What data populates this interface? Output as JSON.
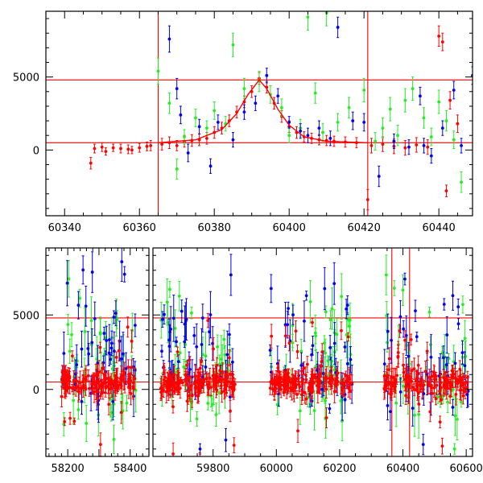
{
  "chart_data": [
    {
      "type": "scatter",
      "title": "",
      "xlabel": "",
      "ylabel": "",
      "xlim": [
        60335,
        60449
      ],
      "ylim": [
        -4500,
        9500
      ],
      "x_ticks": [
        60340,
        60360,
        60380,
        60400,
        60420,
        60440
      ],
      "y_ticks": [
        0,
        5000
      ],
      "x_tick_labels": [
        "60340",
        "60360",
        "60380",
        "60400",
        "60420",
        "60440"
      ],
      "y_tick_labels": [
        "0",
        "5000"
      ],
      "legend": "none",
      "grid": false,
      "colors": {
        "red": "#ff0000",
        "green": "#22ee22",
        "blue": "#0000ee"
      },
      "hlines": [
        4800,
        500
      ],
      "vlines": [
        60365,
        60421
      ],
      "model_curve": {
        "color": "#ff0000",
        "x": [
          60365,
          60375,
          60382,
          60386,
          60389,
          60392,
          60394,
          60397,
          60400,
          60404,
          60410,
          60421
        ],
        "y": [
          500,
          700,
          1400,
          2500,
          3800,
          4800,
          4200,
          2800,
          1700,
          900,
          600,
          500
        ]
      },
      "series": [
        {
          "color": "#ff0000",
          "x": [
            60347,
            60348,
            60350,
            60351,
            60353,
            60355,
            60357,
            60358,
            60360,
            60362,
            60363,
            60366,
            60368,
            60370,
            60372,
            60374,
            60376,
            60378,
            60380,
            60382,
            60384,
            60386,
            60388,
            60390,
            60392,
            60394,
            60396,
            60398,
            60400,
            60402,
            60404,
            60406,
            60408,
            60410,
            60412,
            60415,
            60418,
            60421,
            60422,
            60425,
            60428,
            60431,
            60434,
            60437,
            60440,
            60441,
            60442,
            60443,
            60445
          ],
          "y": [
            -900,
            100,
            200,
            -100,
            150,
            100,
            50,
            0,
            150,
            250,
            300,
            400,
            500,
            300,
            600,
            650,
            700,
            800,
            1200,
            1500,
            2000,
            2600,
            3300,
            4000,
            4900,
            4300,
            3200,
            2300,
            1600,
            1200,
            900,
            800,
            700,
            650,
            600,
            550,
            500,
            -3400,
            300,
            400,
            250,
            150,
            350,
            200,
            7800,
            7400,
            -2800,
            3400,
            1800
          ],
          "err": [
            400,
            300,
            300,
            250,
            250,
            300,
            300,
            250,
            300,
            300,
            350,
            400,
            400,
            350,
            400,
            400,
            400,
            400,
            400,
            400,
            400,
            400,
            400,
            400,
            400,
            400,
            400,
            400,
            400,
            400,
            350,
            350,
            350,
            350,
            350,
            350,
            350,
            700,
            500,
            500,
            500,
            500,
            500,
            500,
            700,
            600,
            400,
            600,
            600
          ]
        },
        {
          "color": "#22ee22",
          "x": [
            60365,
            60368,
            60370,
            60372,
            60375,
            60378,
            60380,
            60383,
            60385,
            60388,
            60392,
            60395,
            60398,
            60400,
            60403,
            60405,
            60407,
            60409,
            60410,
            60413,
            60416,
            60420,
            60423,
            60425,
            60427,
            60429,
            60431,
            60433,
            60436,
            60438,
            60440,
            60442,
            60444,
            60446
          ],
          "y": [
            5400,
            3200,
            -1300,
            900,
            2200,
            1500,
            2700,
            1800,
            7200,
            4200,
            4700,
            3800,
            2900,
            1000,
            1500,
            9100,
            3900,
            1200,
            9400,
            1900,
            2900,
            4100,
            600,
            1500,
            2800,
            1000,
            3400,
            4200,
            2200,
            900,
            3300,
            2000,
            700,
            -2200
          ],
          "err": [
            900,
            700,
            700,
            500,
            600,
            500,
            600,
            500,
            800,
            700,
            700,
            600,
            600,
            500,
            600,
            900,
            700,
            600,
            900,
            600,
            700,
            800,
            600,
            700,
            800,
            700,
            800,
            800,
            700,
            600,
            800,
            700,
            600,
            700
          ]
        },
        {
          "color": "#0000ee",
          "x": [
            60368,
            60370,
            60371,
            60373,
            60376,
            60379,
            60381,
            60385,
            60388,
            60391,
            60394,
            60397,
            60400,
            60403,
            60405,
            60408,
            60411,
            60413,
            60417,
            60420,
            60424,
            60428,
            60432,
            60435,
            60436,
            60438,
            60441,
            60444,
            60446,
            60449
          ],
          "y": [
            7600,
            4200,
            2400,
            -200,
            1600,
            -1100,
            1900,
            700,
            2600,
            3200,
            5100,
            3700,
            1900,
            1300,
            1000,
            1500,
            800,
            8400,
            2000,
            1900,
            -1800,
            600,
            200,
            3700,
            300,
            -400,
            1500,
            4100,
            300,
            5100
          ],
          "err": [
            900,
            700,
            600,
            600,
            500,
            500,
            500,
            500,
            500,
            500,
            500,
            500,
            400,
            500,
            500,
            500,
            500,
            700,
            600,
            600,
            700,
            500,
            500,
            600,
            500,
            500,
            500,
            600,
            500,
            600
          ]
        }
      ]
    },
    {
      "type": "scatter",
      "title": "",
      "xlabel": "",
      "ylabel": "",
      "xlim": [
        58130,
        60620
      ],
      "ylim": [
        -4500,
        9500
      ],
      "x_breaks": [
        [
          58130,
          58460
        ],
        [
          59610,
          60620
        ]
      ],
      "x_ticks": [
        58200,
        58300,
        58400,
        59800,
        60000,
        60200,
        60400,
        60600
      ],
      "x_tick_labels": [
        "58200",
        "",
        "58400",
        "59800",
        "60000",
        "60200",
        "60400",
        "60600"
      ],
      "y_ticks": [
        0,
        5000
      ],
      "y_tick_labels": [
        "0",
        "5000"
      ],
      "legend": "none",
      "grid": false,
      "colors": {
        "red": "#ff0000",
        "green": "#22ee22",
        "blue": "#0000ee"
      },
      "hlines": [
        4800,
        500
      ],
      "vlines": [
        60365,
        60421
      ],
      "clusters": [
        {
          "x_range": [
            58180,
            58420
          ],
          "count_red": 150,
          "count_green": 45,
          "count_blue": 45
        },
        {
          "x_range": [
            59635,
            59870
          ],
          "count_red": 150,
          "count_green": 45,
          "count_blue": 45
        },
        {
          "x_range": [
            59980,
            60240
          ],
          "count_red": 160,
          "count_green": 50,
          "count_blue": 45
        },
        {
          "x_range": [
            60340,
            60610
          ],
          "count_red": 150,
          "count_green": 40,
          "count_blue": 40
        }
      ]
    }
  ]
}
